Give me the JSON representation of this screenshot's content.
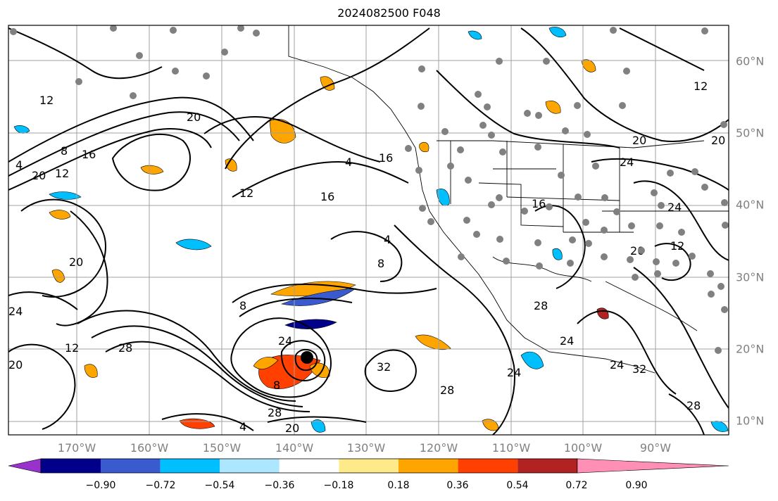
{
  "title": "2024082500 F048",
  "lat_labels": [
    "60°N",
    "50°N",
    "40°N",
    "30°N",
    "20°N",
    "10°N"
  ],
  "lon_labels": [
    "170°W",
    "160°W",
    "150°W",
    "140°W",
    "130°W",
    "120°W",
    "110°W",
    "100°W",
    "90°W"
  ],
  "colorbar": {
    "ticks": [
      "−0.90",
      "−0.72",
      "−0.54",
      "−0.36",
      "−0.18",
      "0.18",
      "0.36",
      "0.54",
      "0.72",
      "0.90"
    ],
    "colors": [
      "#9932cc",
      "#00008b",
      "#3a5bd0",
      "#00bfff",
      "#ade6ff",
      "#ffffff",
      "#ffea8a",
      "#ffa500",
      "#ff4000",
      "#b22222",
      "#ff8fb4"
    ]
  },
  "contour_labels": [
    "12",
    "20",
    "8",
    "16",
    "12",
    "4",
    "16",
    "12",
    "20",
    "16",
    "4",
    "20",
    "20",
    "24",
    "12",
    "24",
    "24",
    "20",
    "12",
    "28",
    "20",
    "24",
    "8",
    "8",
    "24",
    "28",
    "32",
    "28",
    "24",
    "32",
    "28",
    "20",
    "4",
    "28",
    "12",
    "4",
    "8",
    "16",
    "20",
    "24"
  ],
  "storm_center": "tropical-cyclone-center"
}
